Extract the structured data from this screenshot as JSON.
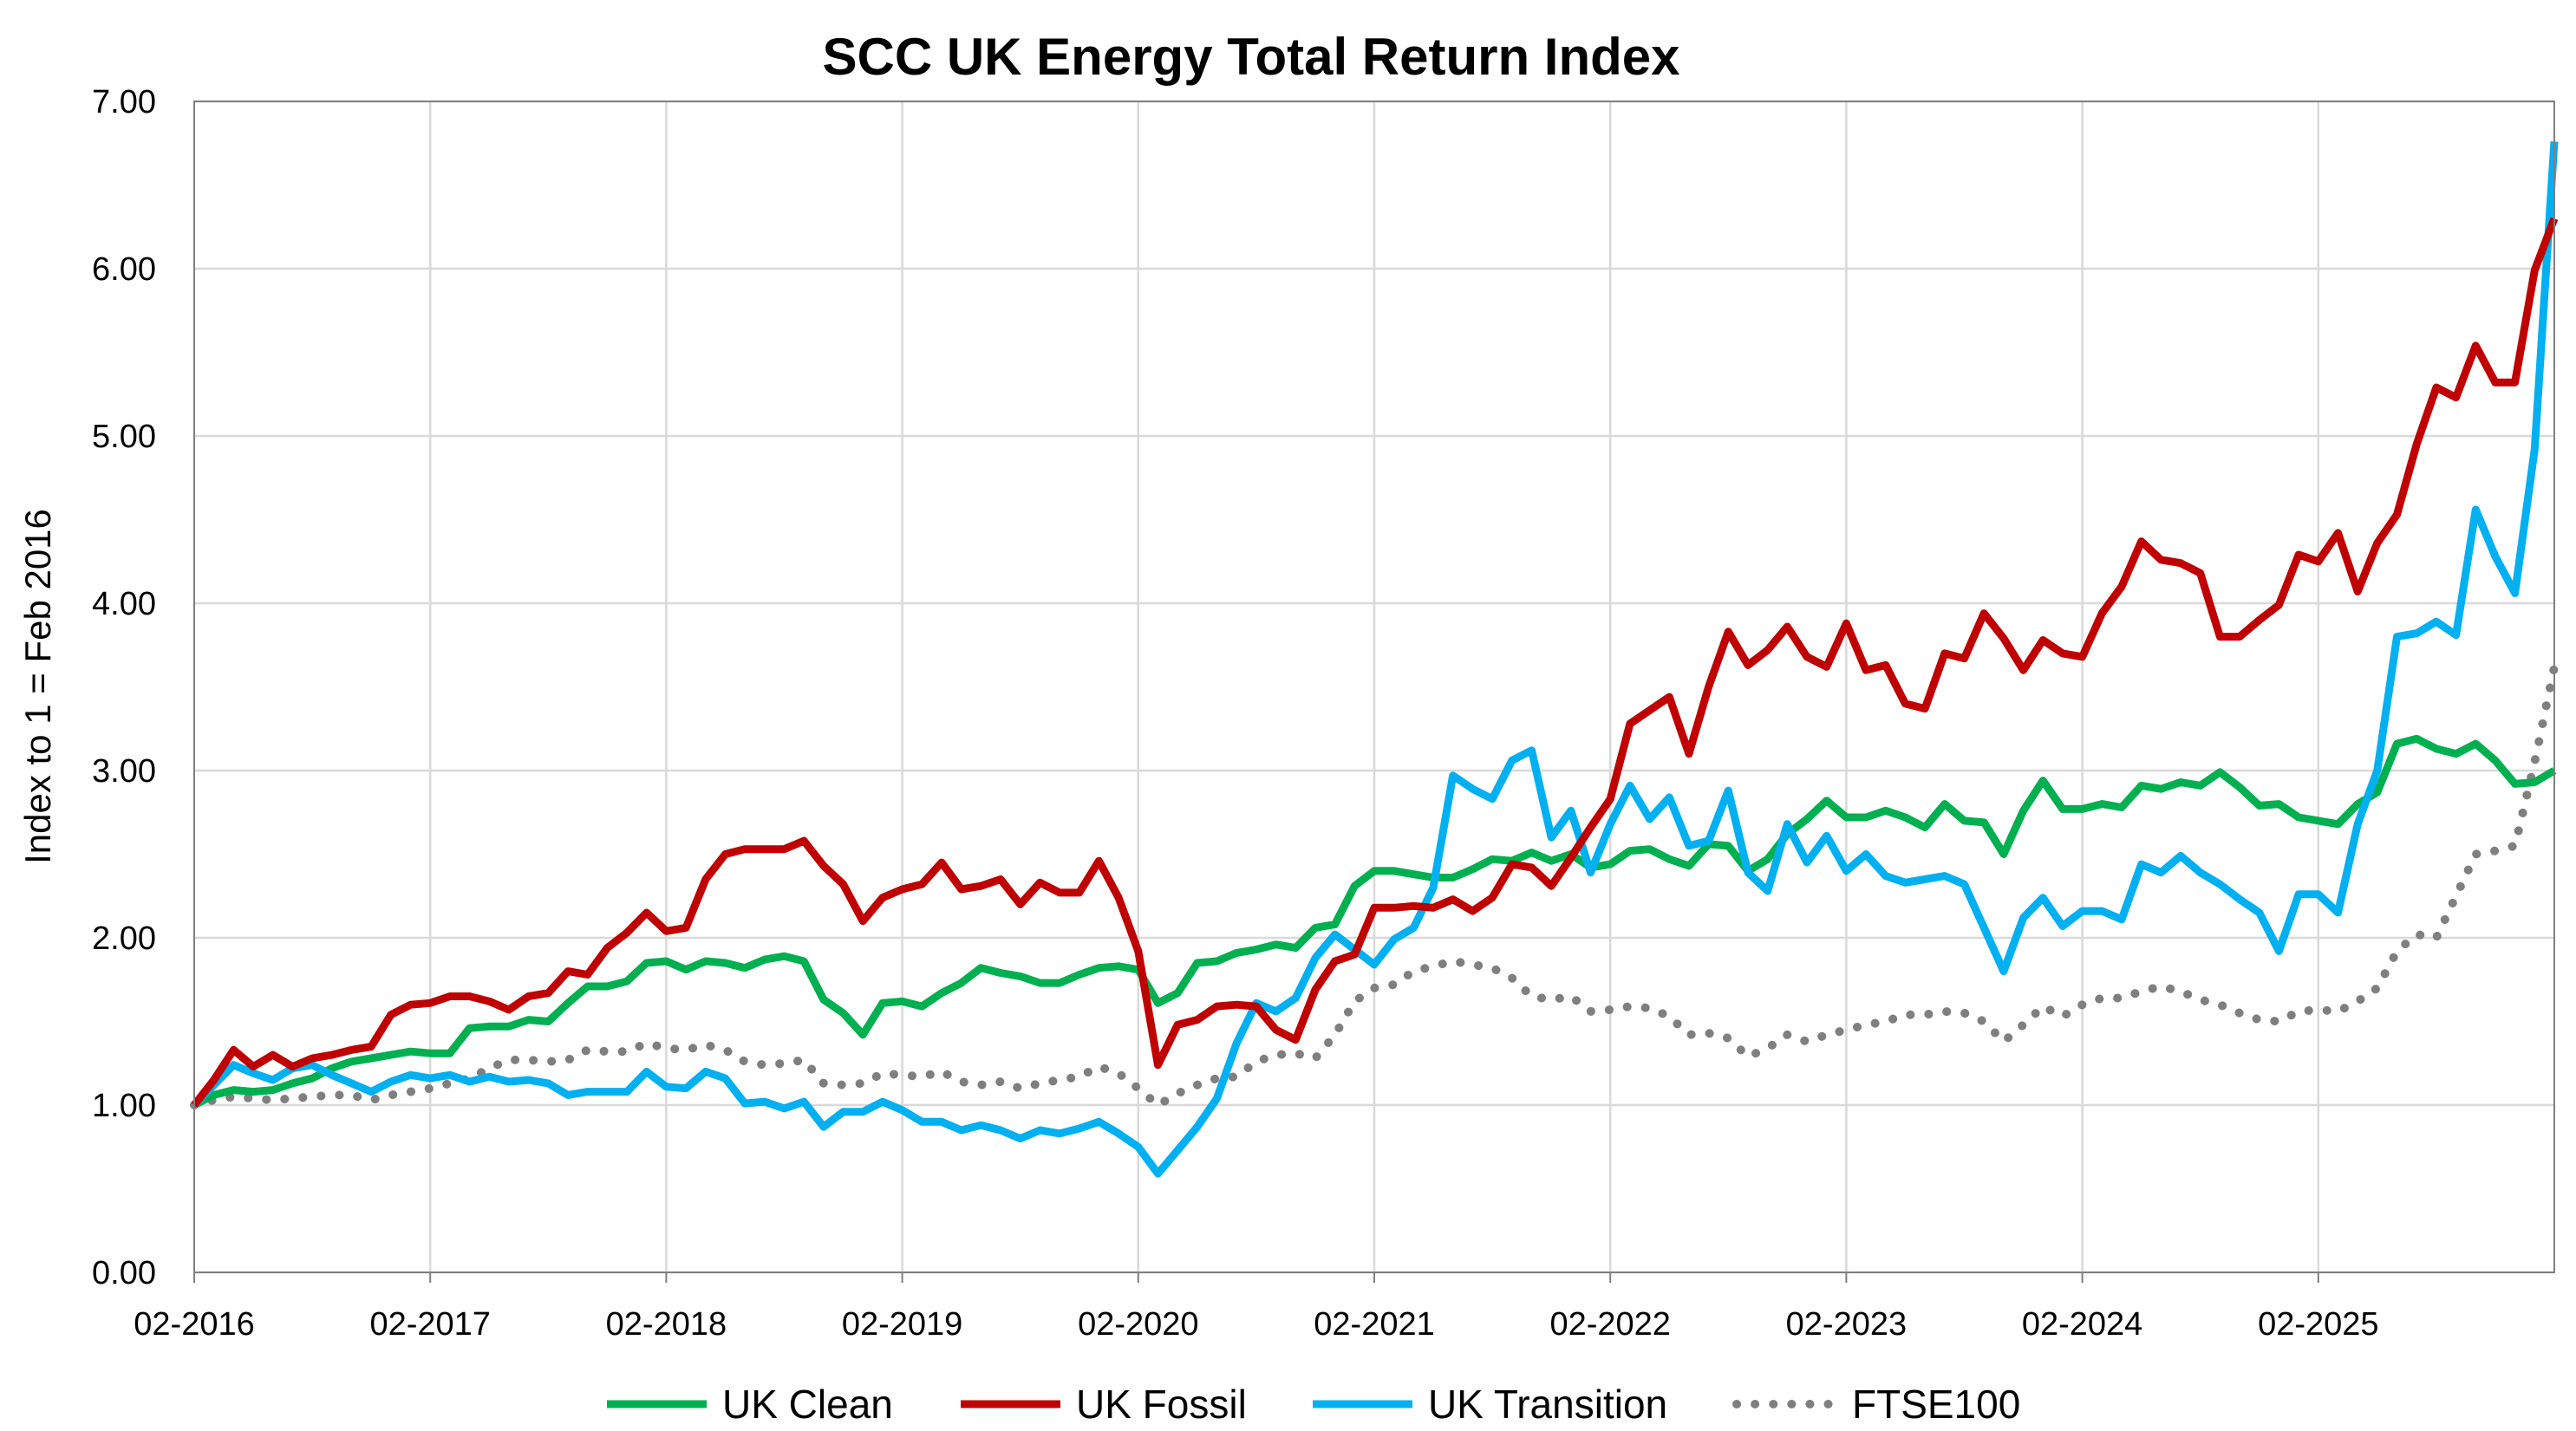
{
  "chart_data": {
    "type": "line",
    "title": "SCC UK Energy Total Return Index",
    "xlabel": "",
    "ylabel": "Index to 1 = Feb 2016",
    "ylim": [
      0,
      7
    ],
    "yticks": [
      "0.00",
      "1.00",
      "2.00",
      "3.00",
      "4.00",
      "5.00",
      "6.00",
      "7.00"
    ],
    "xticks": [
      "02-2016",
      "02-2017",
      "02-2018",
      "02-2019",
      "02-2020",
      "02-2021",
      "02-2022",
      "02-2023",
      "02-2024",
      "02-2025"
    ],
    "grid": true,
    "legend_position": "bottom",
    "x": [
      "02-2016",
      "03-2016",
      "04-2016",
      "05-2016",
      "06-2016",
      "07-2016",
      "08-2016",
      "09-2016",
      "10-2016",
      "11-2016",
      "12-2016",
      "01-2017",
      "02-2017",
      "03-2017",
      "04-2017",
      "05-2017",
      "06-2017",
      "07-2017",
      "08-2017",
      "09-2017",
      "10-2017",
      "11-2017",
      "12-2017",
      "01-2018",
      "02-2018",
      "03-2018",
      "04-2018",
      "05-2018",
      "06-2018",
      "07-2018",
      "08-2018",
      "09-2018",
      "10-2018",
      "11-2018",
      "12-2018",
      "01-2019",
      "02-2019",
      "03-2019",
      "04-2019",
      "05-2019",
      "06-2019",
      "07-2019",
      "08-2019",
      "09-2019",
      "10-2019",
      "11-2019",
      "12-2019",
      "01-2020",
      "02-2020",
      "03-2020",
      "04-2020",
      "05-2020",
      "06-2020",
      "07-2020",
      "08-2020",
      "09-2020",
      "10-2020",
      "11-2020",
      "12-2020",
      "01-2021",
      "02-2021",
      "03-2021",
      "04-2021",
      "05-2021",
      "06-2021",
      "07-2021",
      "08-2021",
      "09-2021",
      "10-2021",
      "11-2021",
      "12-2021",
      "01-2022",
      "02-2022",
      "03-2022",
      "04-2022",
      "05-2022",
      "06-2022",
      "07-2022",
      "08-2022",
      "09-2022",
      "10-2022",
      "11-2022",
      "12-2022",
      "01-2023",
      "02-2023",
      "03-2023",
      "04-2023",
      "05-2023",
      "06-2023",
      "07-2023",
      "08-2023",
      "09-2023",
      "10-2023",
      "11-2023",
      "12-2023",
      "01-2024",
      "02-2024",
      "03-2024",
      "04-2024",
      "05-2024",
      "06-2024",
      "07-2024",
      "08-2024",
      "09-2024",
      "10-2024",
      "11-2024",
      "12-2024",
      "01-2025",
      "02-2025",
      "03-2025",
      "04-2025",
      "05-2025",
      "06-2025",
      "07-2025",
      "08-2025",
      "09-2025",
      "10-2025",
      "11-2025",
      "12-2025",
      "01-2026",
      "02-2026"
    ],
    "series": [
      {
        "name": "UK Clean",
        "color": "#00B050",
        "style": "solid",
        "values": [
          1.0,
          1.06,
          1.09,
          1.08,
          1.09,
          1.13,
          1.16,
          1.22,
          1.26,
          1.28,
          1.3,
          1.32,
          1.31,
          1.31,
          1.46,
          1.47,
          1.47,
          1.51,
          1.5,
          1.61,
          1.71,
          1.71,
          1.74,
          1.85,
          1.86,
          1.81,
          1.86,
          1.85,
          1.82,
          1.87,
          1.89,
          1.86,
          1.63,
          1.55,
          1.42,
          1.61,
          1.62,
          1.59,
          1.67,
          1.73,
          1.82,
          1.79,
          1.77,
          1.73,
          1.73,
          1.78,
          1.82,
          1.83,
          1.81,
          1.61,
          1.67,
          1.85,
          1.86,
          1.91,
          1.93,
          1.96,
          1.94,
          2.06,
          2.08,
          2.31,
          2.4,
          2.4,
          2.38,
          2.36,
          2.36,
          2.41,
          2.47,
          2.46,
          2.51,
          2.46,
          2.5,
          2.42,
          2.44,
          2.52,
          2.53,
          2.47,
          2.43,
          2.56,
          2.55,
          2.4,
          2.47,
          2.62,
          2.71,
          2.82,
          2.72,
          2.72,
          2.76,
          2.72,
          2.66,
          2.8,
          2.7,
          2.69,
          2.5,
          2.76,
          2.94,
          2.77,
          2.77,
          2.8,
          2.78,
          2.91,
          2.89,
          2.93,
          2.91,
          2.99,
          2.9,
          2.79,
          2.8,
          2.72,
          2.7,
          2.68,
          2.8,
          2.87,
          3.16,
          3.19,
          3.13,
          3.1,
          3.16,
          3.06,
          2.92,
          2.93,
          3.0
        ]
      },
      {
        "name": "UK Fossil",
        "color": "#C00000",
        "style": "solid",
        "values": [
          1.0,
          1.15,
          1.33,
          1.23,
          1.3,
          1.23,
          1.28,
          1.3,
          1.33,
          1.35,
          1.54,
          1.6,
          1.61,
          1.65,
          1.65,
          1.62,
          1.57,
          1.65,
          1.67,
          1.8,
          1.78,
          1.94,
          2.03,
          2.15,
          2.04,
          2.06,
          2.35,
          2.5,
          2.53,
          2.53,
          2.53,
          2.58,
          2.43,
          2.32,
          2.1,
          2.24,
          2.29,
          2.32,
          2.45,
          2.29,
          2.31,
          2.35,
          2.2,
          2.33,
          2.27,
          2.27,
          2.46,
          2.24,
          1.92,
          1.24,
          1.48,
          1.51,
          1.59,
          1.6,
          1.59,
          1.45,
          1.39,
          1.69,
          1.86,
          1.9,
          2.18,
          2.18,
          2.19,
          2.18,
          2.23,
          2.16,
          2.24,
          2.44,
          2.42,
          2.31,
          2.48,
          2.66,
          2.83,
          3.28,
          3.36,
          3.44,
          3.1,
          3.5,
          3.83,
          3.63,
          3.72,
          3.86,
          3.68,
          3.62,
          3.88,
          3.6,
          3.63,
          3.4,
          3.37,
          3.7,
          3.67,
          3.94,
          3.79,
          3.6,
          3.78,
          3.7,
          3.68,
          3.94,
          4.1,
          4.37,
          4.26,
          4.24,
          4.18,
          3.8,
          3.8,
          3.9,
          3.99,
          4.29,
          4.25,
          4.42,
          4.07,
          4.36,
          4.53,
          4.95,
          5.29,
          5.23,
          5.54,
          5.32,
          5.32,
          5.99,
          6.3
        ]
      },
      {
        "name": "UK Transition",
        "color": "#00B0F0",
        "style": "solid",
        "values": [
          1.0,
          1.12,
          1.24,
          1.19,
          1.15,
          1.22,
          1.24,
          1.18,
          1.13,
          1.08,
          1.14,
          1.18,
          1.16,
          1.18,
          1.14,
          1.17,
          1.14,
          1.15,
          1.13,
          1.06,
          1.08,
          1.08,
          1.08,
          1.2,
          1.11,
          1.1,
          1.2,
          1.16,
          1.01,
          1.02,
          0.98,
          1.02,
          0.87,
          0.96,
          0.96,
          1.02,
          0.97,
          0.9,
          0.9,
          0.85,
          0.88,
          0.85,
          0.8,
          0.85,
          0.83,
          0.86,
          0.9,
          0.83,
          0.75,
          0.59,
          0.73,
          0.87,
          1.04,
          1.37,
          1.61,
          1.56,
          1.64,
          1.88,
          2.02,
          1.93,
          1.84,
          1.99,
          2.06,
          2.3,
          2.97,
          2.89,
          2.83,
          3.06,
          3.12,
          2.6,
          2.76,
          2.39,
          2.68,
          2.91,
          2.71,
          2.84,
          2.55,
          2.58,
          2.88,
          2.39,
          2.28,
          2.68,
          2.45,
          2.61,
          2.4,
          2.5,
          2.37,
          2.33,
          2.35,
          2.37,
          2.32,
          2.06,
          1.8,
          2.12,
          2.24,
          2.07,
          2.16,
          2.16,
          2.11,
          2.44,
          2.39,
          2.49,
          2.39,
          2.32,
          2.23,
          2.15,
          1.92,
          2.26,
          2.26,
          2.15,
          2.68,
          3.0,
          3.8,
          3.82,
          3.89,
          3.81,
          4.56,
          4.28,
          4.06,
          4.92,
          6.76
        ]
      },
      {
        "name": "FTSE100",
        "color": "#7F7F7F",
        "style": "dotted",
        "values": [
          1.0,
          1.03,
          1.05,
          1.04,
          1.03,
          1.04,
          1.05,
          1.06,
          1.06,
          1.03,
          1.06,
          1.08,
          1.1,
          1.13,
          1.16,
          1.22,
          1.27,
          1.27,
          1.26,
          1.27,
          1.33,
          1.32,
          1.32,
          1.37,
          1.34,
          1.33,
          1.36,
          1.33,
          1.26,
          1.24,
          1.25,
          1.27,
          1.13,
          1.12,
          1.13,
          1.19,
          1.18,
          1.17,
          1.2,
          1.14,
          1.12,
          1.14,
          1.1,
          1.13,
          1.15,
          1.17,
          1.23,
          1.19,
          1.1,
          1.0,
          1.07,
          1.12,
          1.16,
          1.17,
          1.26,
          1.3,
          1.31,
          1.28,
          1.42,
          1.62,
          1.7,
          1.72,
          1.8,
          1.83,
          1.86,
          1.84,
          1.82,
          1.76,
          1.65,
          1.63,
          1.65,
          1.56,
          1.57,
          1.59,
          1.58,
          1.53,
          1.42,
          1.43,
          1.4,
          1.29,
          1.34,
          1.42,
          1.38,
          1.42,
          1.45,
          1.48,
          1.5,
          1.54,
          1.54,
          1.56,
          1.55,
          1.5,
          1.38,
          1.48,
          1.59,
          1.53,
          1.6,
          1.64,
          1.64,
          1.68,
          1.71,
          1.68,
          1.63,
          1.6,
          1.55,
          1.51,
          1.5,
          1.56,
          1.57,
          1.56,
          1.62,
          1.7,
          1.92,
          2.02,
          2.0,
          2.25,
          2.5,
          2.52,
          2.55,
          3.05,
          3.62
        ]
      }
    ]
  }
}
